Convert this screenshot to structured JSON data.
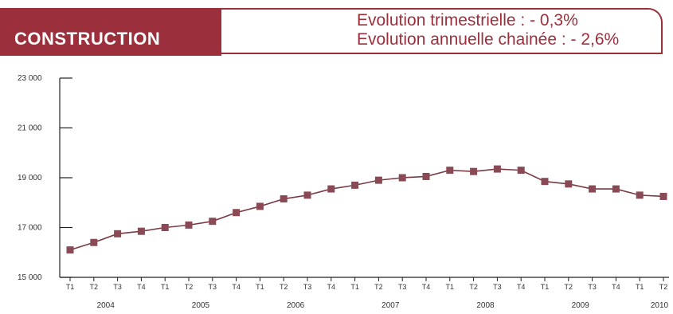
{
  "header": {
    "title": "CONSTRUCTION",
    "line1": "Evolution trimestrielle : - 0,3%",
    "line2": "Evolution annuelle chainée : - 2,6%"
  },
  "colors": {
    "accent": "#9b2f3b",
    "line": "#7a3a44",
    "marker": "#8a4a55"
  },
  "chart_data": {
    "type": "line",
    "title": "",
    "xlabel": "",
    "ylabel": "",
    "ylim": [
      15000,
      23000
    ],
    "yticks": [
      15000,
      17000,
      19000,
      21000,
      23000
    ],
    "ytick_labels": [
      "15 000",
      "17 000",
      "19 000",
      "21 000",
      "23 000"
    ],
    "categories": [
      "T1",
      "T2",
      "T3",
      "T4",
      "T1",
      "T2",
      "T3",
      "T4",
      "T1",
      "T2",
      "T3",
      "T4",
      "T1",
      "T2",
      "T3",
      "T4",
      "T1",
      "T2",
      "T3",
      "T4",
      "T1",
      "T2",
      "T3",
      "T4",
      "T1",
      "T2"
    ],
    "years": [
      "2004",
      "2005",
      "2006",
      "2007",
      "2008",
      "2009",
      "2010"
    ],
    "series": [
      {
        "values": [
          16100,
          16400,
          16750,
          16850,
          17000,
          17100,
          17250,
          17600,
          17850,
          18150,
          18300,
          18550,
          18700,
          18900,
          19000,
          19050,
          19300,
          19250,
          19350,
          19300,
          18850,
          18750,
          18550,
          18550,
          18300,
          18250
        ]
      }
    ]
  }
}
